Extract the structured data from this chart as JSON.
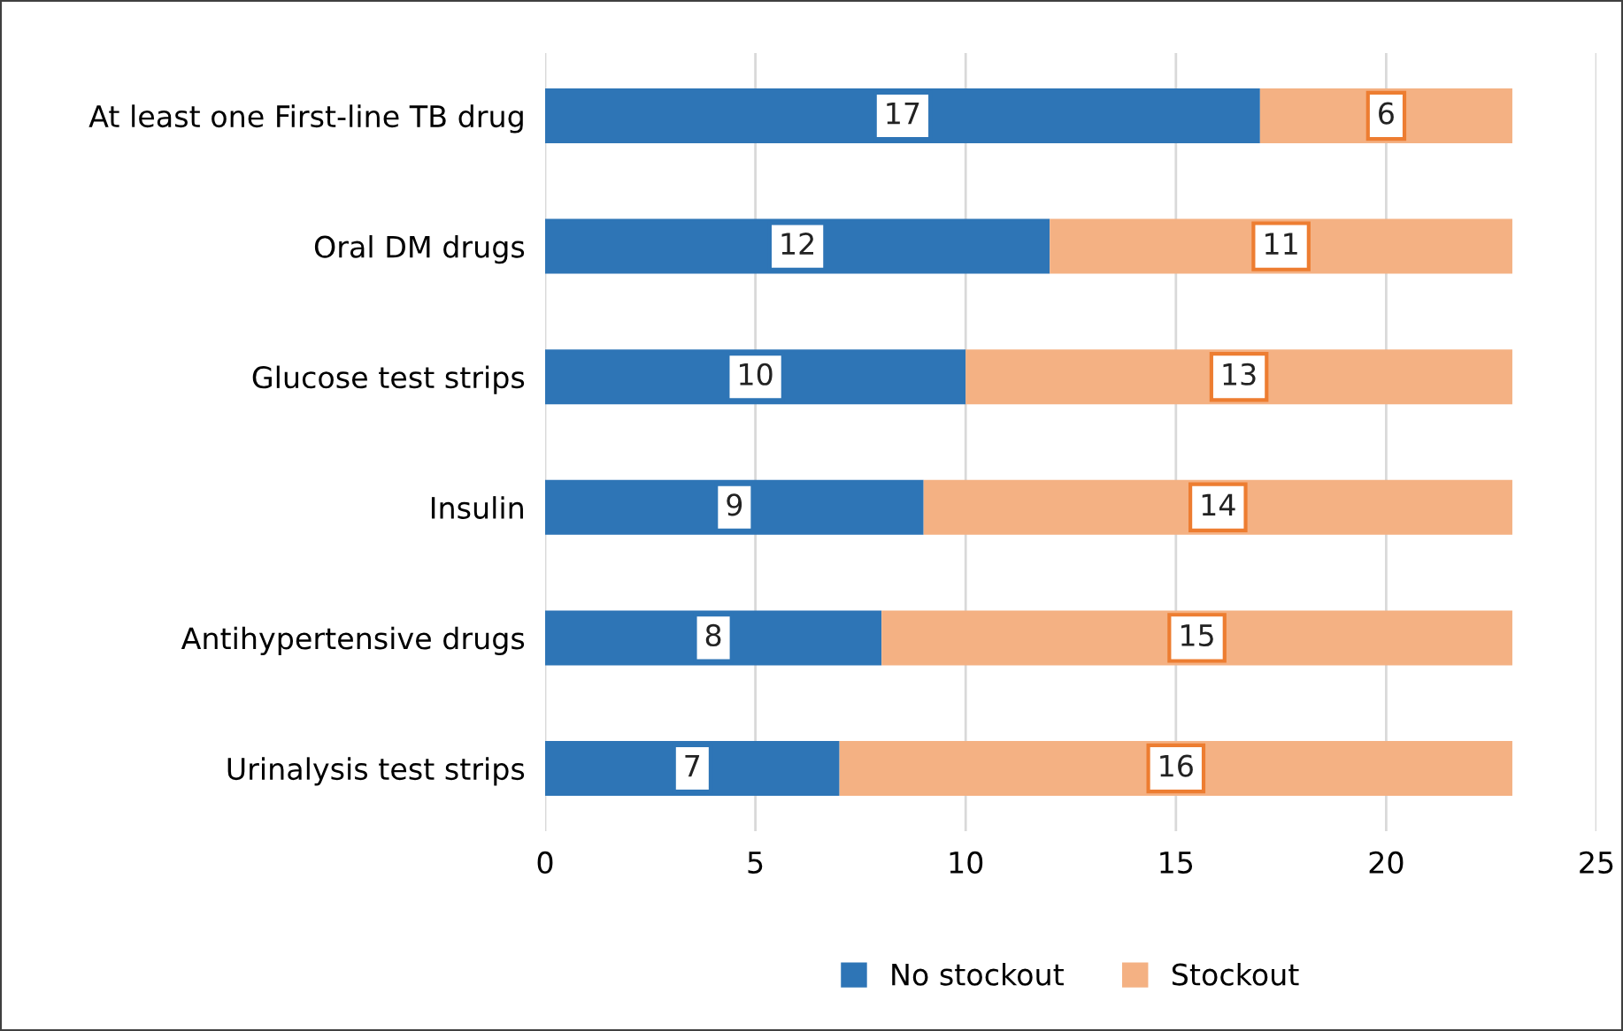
{
  "chart_data": {
    "type": "bar",
    "orientation": "horizontal",
    "stacked": true,
    "categories": [
      "At least one First-line TB drug",
      "Oral DM drugs",
      "Glucose test strips",
      "Insulin",
      "Antihypertensive drugs",
      "Urinalysis test strips"
    ],
    "series": [
      {
        "name": "No stockout",
        "color": "#2e75b6",
        "values": [
          17,
          12,
          10,
          9,
          8,
          7
        ]
      },
      {
        "name": "Stockout",
        "color": "#f4b183",
        "values": [
          6,
          11,
          13,
          14,
          15,
          16
        ]
      }
    ],
    "xlim": [
      0,
      25
    ],
    "xticks": [
      0,
      5,
      10,
      15,
      20,
      25
    ],
    "grid": "x",
    "legend": "bottom",
    "data_labels": true
  }
}
